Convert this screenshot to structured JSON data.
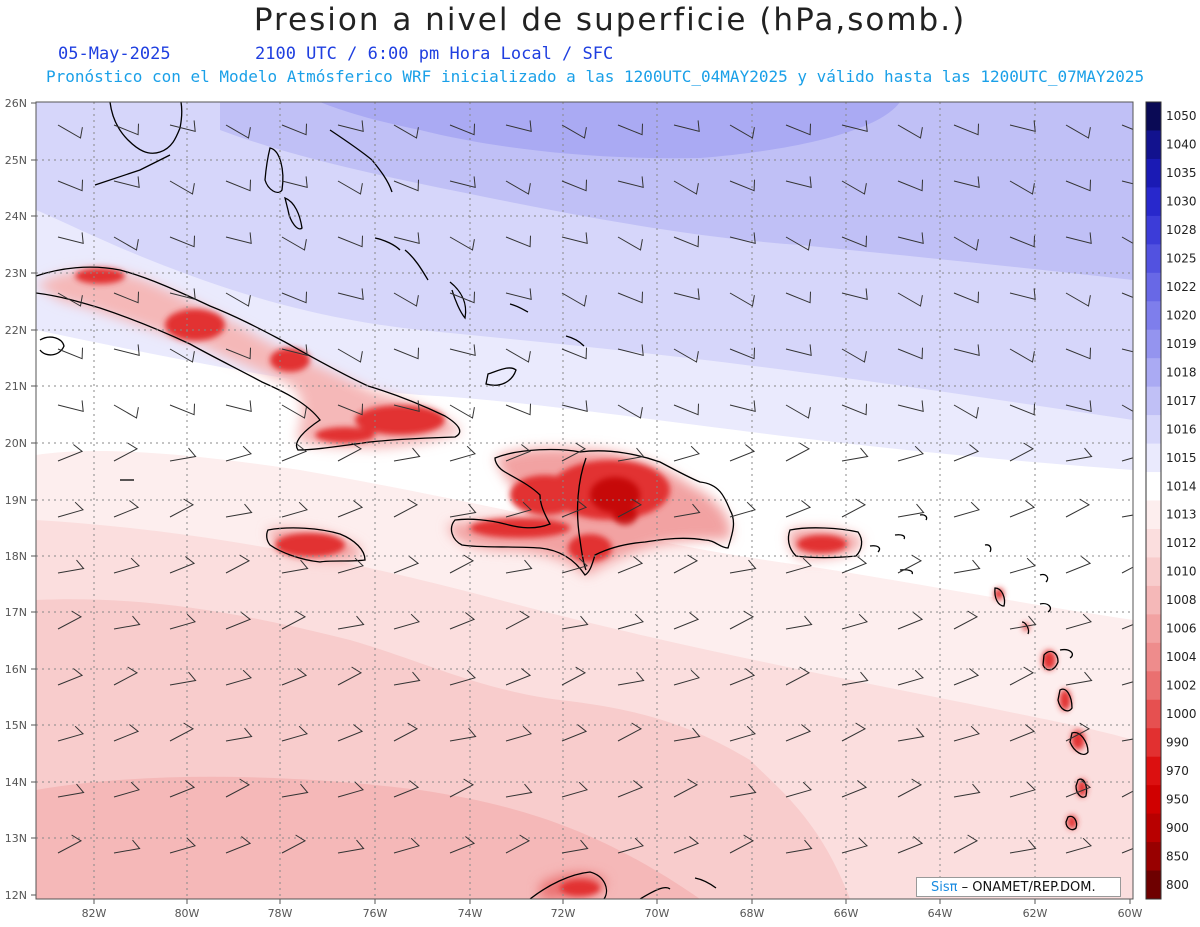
{
  "header": {
    "title": "Presion a nivel de superficie (hPa,somb.)",
    "date": "05-May-2025",
    "time_info": "2100 UTC / 6:00 pm Hora Local / SFC",
    "model_info": "Pronóstico con el Modelo Atmósferico WRF inicializado a las 1200UTC_04MAY2025 y válido hasta las  1200UTC_07MAY2025"
  },
  "map": {
    "lat_labels": [
      "26N",
      "25N",
      "24N",
      "23N",
      "22N",
      "21N",
      "20N",
      "19N",
      "18N",
      "17N",
      "16N",
      "15N",
      "14N",
      "13N",
      "12N"
    ],
    "lon_labels": [
      "82W",
      "80W",
      "78W",
      "76W",
      "74W",
      "72W",
      "70W",
      "68W",
      "66W",
      "64W",
      "62W",
      "60W"
    ]
  },
  "colorbar": {
    "levels": [
      "1050",
      "1040",
      "1035",
      "1030",
      "1028",
      "1025",
      "1022",
      "1020",
      "1019",
      "1018",
      "1017",
      "1016",
      "1015",
      "1014",
      "1013",
      "1012",
      "1010",
      "1008",
      "1006",
      "1004",
      "1002",
      "1000",
      "990",
      "970",
      "950",
      "900",
      "850",
      "800"
    ],
    "colors": [
      "#0a0a55",
      "#12128e",
      "#1a1ab4",
      "#2828cc",
      "#3c3cd8",
      "#5252e0",
      "#6868e6",
      "#7e7eec",
      "#9494ef",
      "#aaaaf3",
      "#c0c0f6",
      "#d6d6fa",
      "#eaeafd",
      "#ffffff",
      "#fdeeee",
      "#fbdede",
      "#f8cccc",
      "#f5b8b8",
      "#f2a2a2",
      "#ee8c8c",
      "#ea7070",
      "#e65050",
      "#e23030",
      "#dc1010",
      "#d00000",
      "#b80000",
      "#980000",
      "#6e0000"
    ]
  },
  "credit": {
    "brand": "Sisπ",
    "text": " – ONAMET/REP.DOM."
  }
}
